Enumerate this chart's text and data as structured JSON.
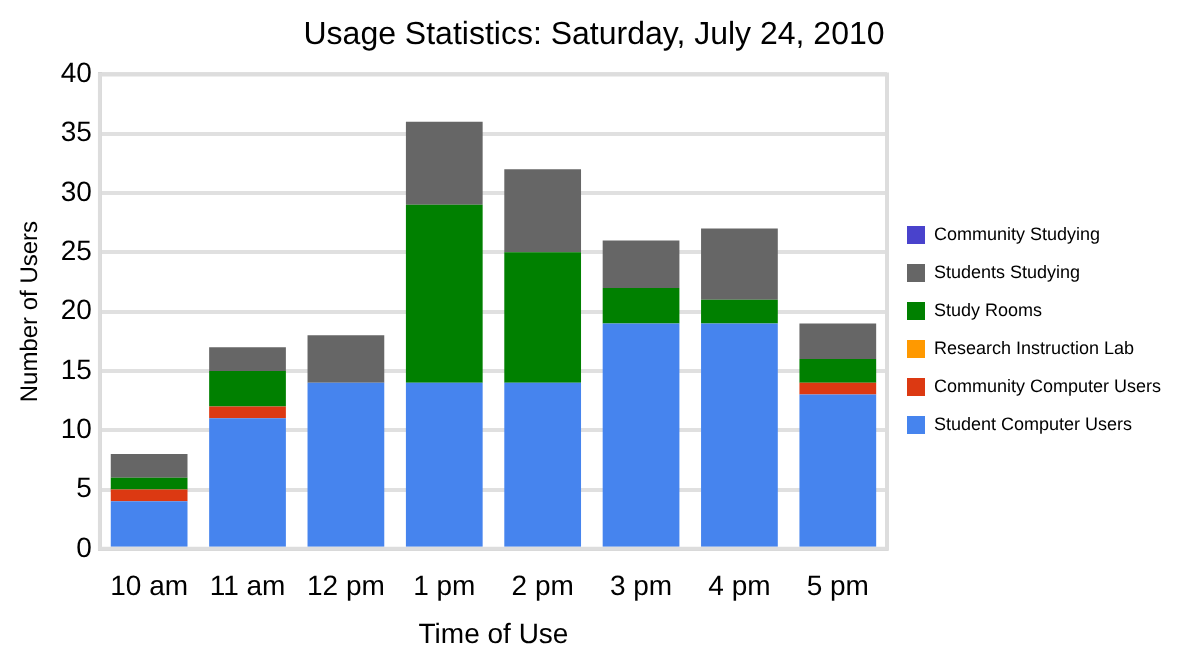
{
  "chart_data": {
    "type": "bar",
    "title": "Usage Statistics: Saturday, July 24, 2010",
    "xlabel": "Time of Use",
    "ylabel": "Number of Users",
    "categories": [
      "10 am",
      "11 am",
      "12 pm",
      "1 pm",
      "2 pm",
      "3 pm",
      "4 pm",
      "5 pm"
    ],
    "stacked": true,
    "ylim": [
      0,
      40
    ],
    "yticks": [
      0,
      5,
      10,
      15,
      20,
      25,
      30,
      35,
      40
    ],
    "grid": "y",
    "legend": "right",
    "series": [
      {
        "name": "Student Computer Users",
        "color": "#4684ee",
        "values": [
          4,
          11,
          14,
          14,
          14,
          19,
          19,
          13
        ]
      },
      {
        "name": "Community Computer Users",
        "color": "#dc3912",
        "values": [
          1,
          1,
          0,
          0,
          0,
          0,
          0,
          1
        ]
      },
      {
        "name": "Research Instruction Lab",
        "color": "#ff9900",
        "values": [
          0,
          0,
          0,
          0,
          0,
          0,
          0,
          0
        ]
      },
      {
        "name": "Study Rooms",
        "color": "#008000",
        "values": [
          1,
          3,
          0,
          15,
          11,
          3,
          2,
          2
        ]
      },
      {
        "name": "Students Studying",
        "color": "#666666",
        "values": [
          2,
          2,
          4,
          7,
          7,
          4,
          6,
          3
        ]
      },
      {
        "name": "Community Studying",
        "color": "#4942cc",
        "values": [
          0,
          0,
          0,
          0,
          0,
          0,
          0,
          0
        ]
      }
    ]
  }
}
